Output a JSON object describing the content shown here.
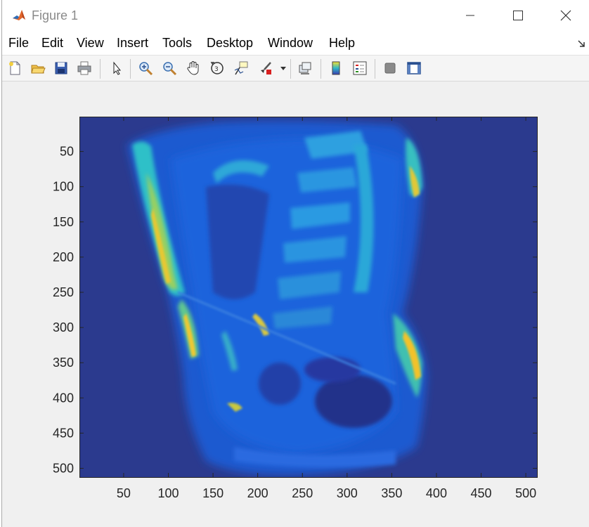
{
  "window": {
    "title": "Figure 1"
  },
  "menu": {
    "items": [
      "File",
      "Edit",
      "View",
      "Insert",
      "Tools",
      "Desktop",
      "Window",
      "Help"
    ]
  },
  "toolbar": {
    "icons": [
      "new-figure-icon",
      "open-file-icon",
      "save-icon",
      "print-icon",
      "edit-plot-arrow-icon",
      "zoom-in-icon",
      "zoom-out-icon",
      "pan-hand-icon",
      "rotate-3d-icon",
      "data-cursor-icon",
      "brush-icon",
      "link-plot-icon",
      "insert-colorbar-icon",
      "insert-legend-icon",
      "hide-plot-tools-icon",
      "show-plot-tools-icon"
    ]
  },
  "chart_data": {
    "type": "heatmap",
    "description_type": "image",
    "colormap": "parula",
    "x_ticks": [
      50,
      100,
      150,
      200,
      250,
      300,
      350,
      400,
      450,
      500
    ],
    "y_ticks": [
      50,
      100,
      150,
      200,
      250,
      300,
      350,
      400,
      450,
      500
    ],
    "xlim": [
      0.5,
      512.5
    ],
    "ylim": [
      0.5,
      512.5
    ],
    "y_reversed": true,
    "grid": false,
    "colors": {
      "background_low": "#2b3a8e",
      "mid": "#1f6fe0",
      "high": "#2fb8c8",
      "peak": "#f5c82a"
    }
  }
}
